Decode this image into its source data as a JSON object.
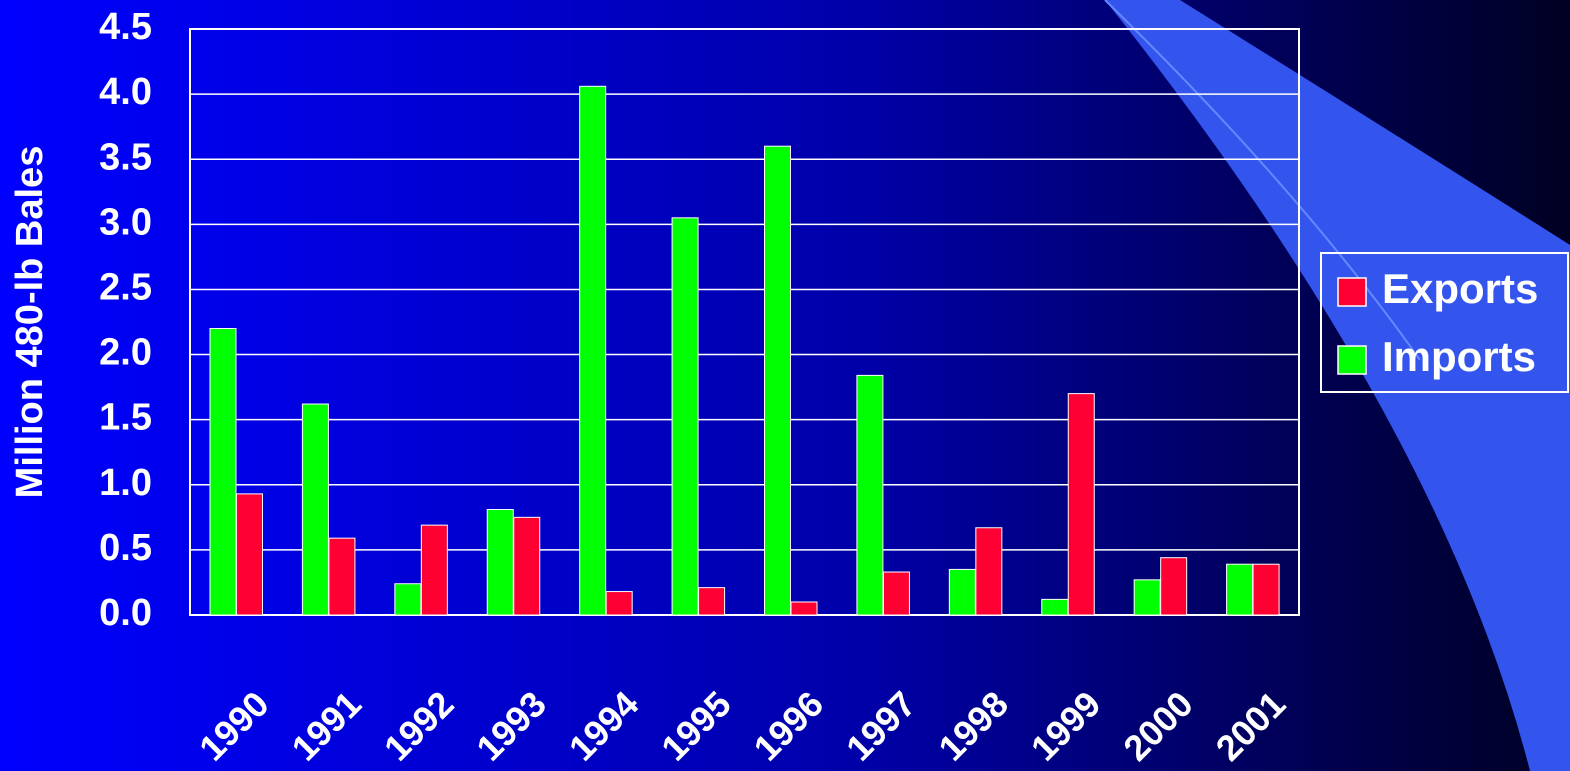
{
  "chart_data": {
    "type": "bar",
    "y_label": "Million 480-lb Bales",
    "categories": [
      "1990",
      "1991",
      "1992",
      "1993",
      "1994",
      "1995",
      "1996",
      "1997",
      "1998",
      "1999",
      "2000",
      "2001"
    ],
    "series": [
      {
        "name": "Imports",
        "color": "#00ff00",
        "values": [
          2.2,
          1.62,
          0.24,
          0.81,
          4.06,
          3.05,
          3.6,
          1.84,
          0.35,
          0.12,
          0.27,
          0.39
        ]
      },
      {
        "name": "Exports",
        "color": "#ff0033",
        "values": [
          0.93,
          0.59,
          0.69,
          0.75,
          0.18,
          0.21,
          0.1,
          0.33,
          0.67,
          1.7,
          0.44,
          0.39
        ]
      }
    ],
    "ylim": [
      0,
      4.5
    ],
    "yticks": [
      {
        "value": 0,
        "label": "0.0"
      },
      0.5,
      {
        "value": 1,
        "label": "1.0"
      },
      1.5,
      {
        "value": 2,
        "label": "2.0"
      },
      2.5,
      {
        "value": 3,
        "label": "3.0"
      },
      3.5,
      {
        "value": 4,
        "label": "4.0"
      },
      4.5
    ],
    "grid": true,
    "legend": "right"
  }
}
